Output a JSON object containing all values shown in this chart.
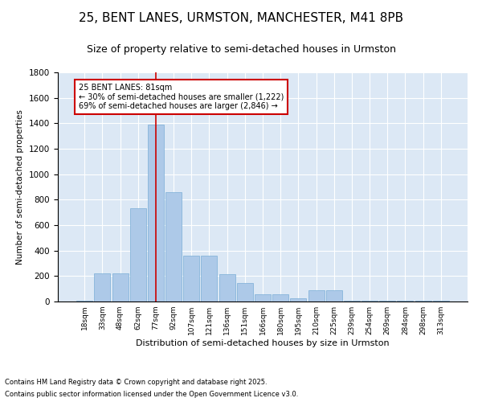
{
  "title1": "25, BENT LANES, URMSTON, MANCHESTER, M41 8PB",
  "title2": "Size of property relative to semi-detached houses in Urmston",
  "xlabel": "Distribution of semi-detached houses by size in Urmston",
  "ylabel": "Number of semi-detached properties",
  "categories": [
    "18sqm",
    "33sqm",
    "48sqm",
    "62sqm",
    "77sqm",
    "92sqm",
    "107sqm",
    "121sqm",
    "136sqm",
    "151sqm",
    "166sqm",
    "180sqm",
    "195sqm",
    "210sqm",
    "225sqm",
    "239sqm",
    "254sqm",
    "269sqm",
    "284sqm",
    "298sqm",
    "313sqm"
  ],
  "values": [
    5,
    220,
    220,
    730,
    1390,
    860,
    360,
    360,
    215,
    145,
    55,
    55,
    25,
    90,
    90,
    5,
    5,
    5,
    5,
    5,
    5
  ],
  "bar_color": "#adc9e8",
  "bar_edge_color": "#7aaed6",
  "vline_x_index": 4,
  "vline_color": "#cc0000",
  "annotation_title": "25 BENT LANES: 81sqm",
  "annotation_line1": "← 30% of semi-detached houses are smaller (1,222)",
  "annotation_line2": "69% of semi-detached houses are larger (2,846) →",
  "annotation_box_color": "#cc0000",
  "ylim": [
    0,
    1800
  ],
  "yticks": [
    0,
    200,
    400,
    600,
    800,
    1000,
    1200,
    1400,
    1600,
    1800
  ],
  "bg_color": "#dce8f5",
  "footer1": "Contains HM Land Registry data © Crown copyright and database right 2025.",
  "footer2": "Contains public sector information licensed under the Open Government Licence v3.0.",
  "title1_fontsize": 11,
  "title2_fontsize": 9
}
